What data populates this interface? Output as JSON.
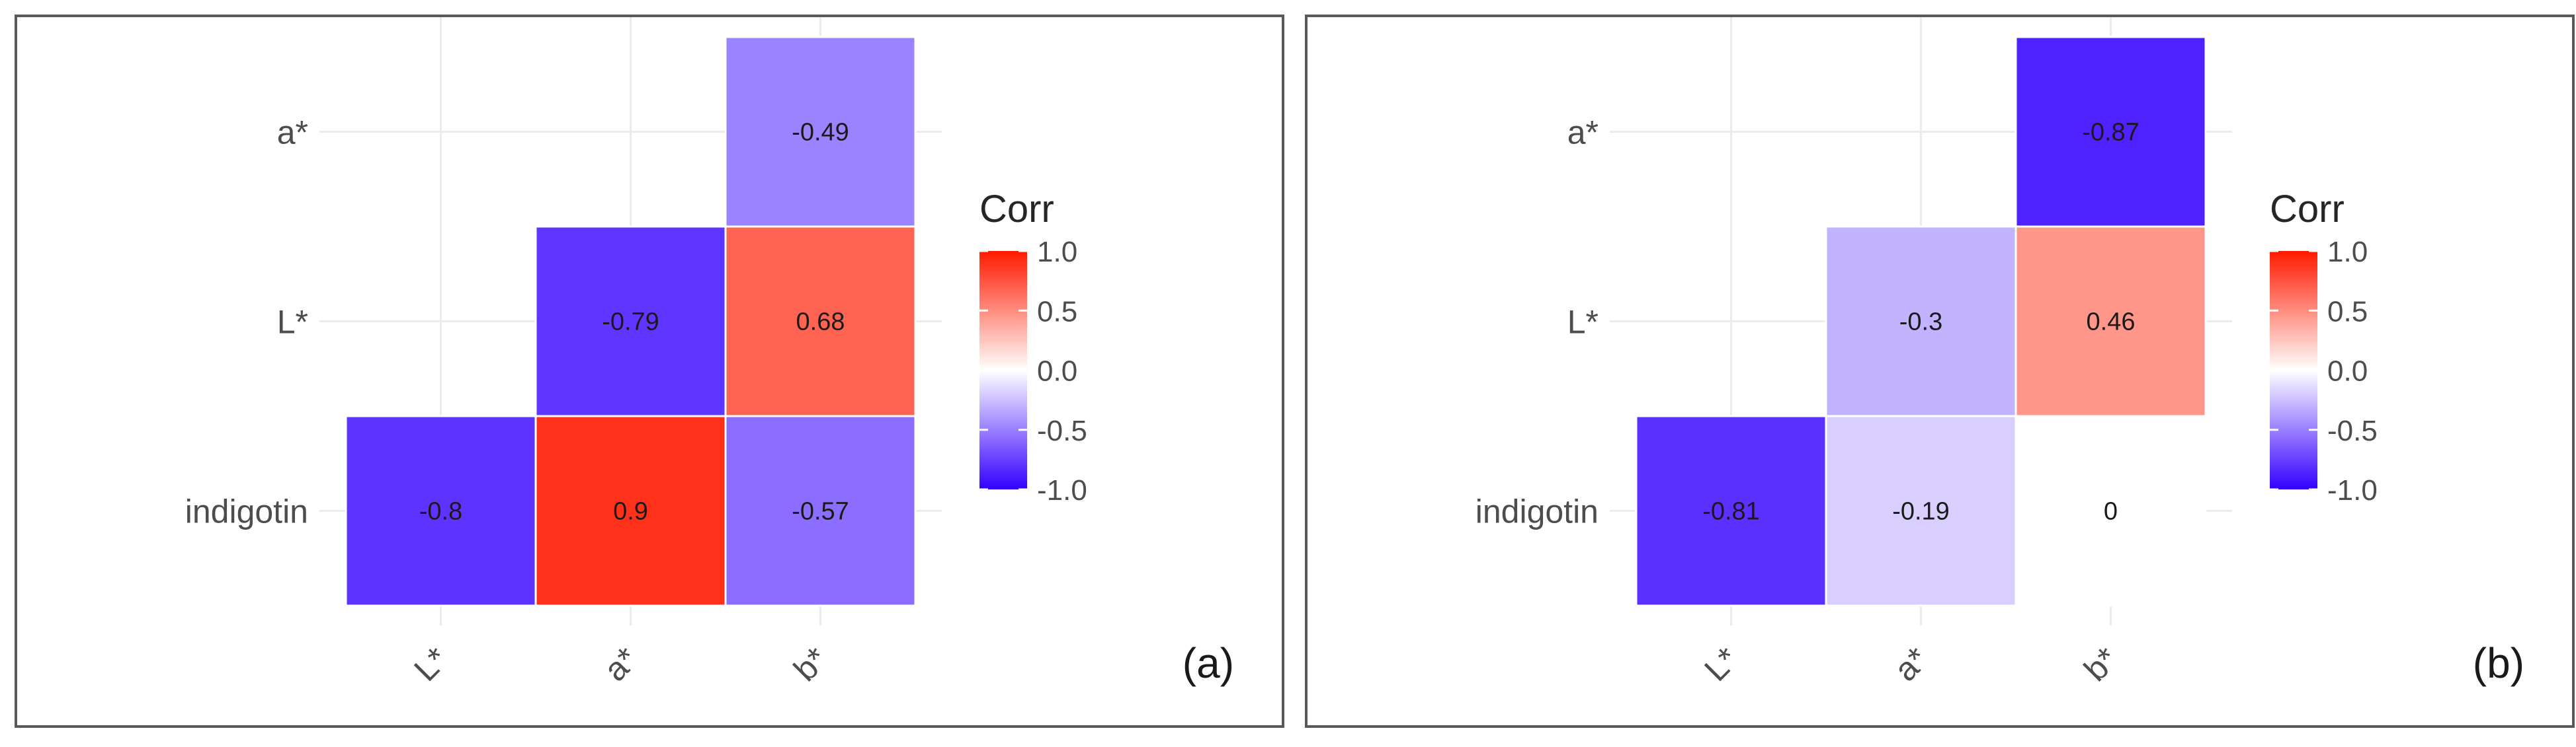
{
  "chart_data": [
    {
      "type": "heatmap",
      "panel_label": "(a)",
      "x_categories": [
        "L*",
        "a*",
        "b*"
      ],
      "y_categories": [
        "indigotin",
        "L*",
        "a*"
      ],
      "cells": [
        {
          "x": "L*",
          "y": "indigotin",
          "value": -0.8,
          "label": "-0.8"
        },
        {
          "x": "a*",
          "y": "indigotin",
          "value": 0.9,
          "label": "0.9"
        },
        {
          "x": "b*",
          "y": "indigotin",
          "value": -0.57,
          "label": "-0.57"
        },
        {
          "x": "a*",
          "y": "L*",
          "value": -0.79,
          "label": "-0.79"
        },
        {
          "x": "b*",
          "y": "L*",
          "value": 0.68,
          "label": "0.68"
        },
        {
          "x": "b*",
          "y": "a*",
          "value": -0.49,
          "label": "-0.49"
        }
      ],
      "legend": {
        "title": "Corr",
        "ticks": [
          "1.0",
          "0.5",
          "0.0",
          "-0.5",
          "-1.0"
        ],
        "range": [
          -1,
          1
        ]
      }
    },
    {
      "type": "heatmap",
      "panel_label": "(b)",
      "x_categories": [
        "L*",
        "a*",
        "b*"
      ],
      "y_categories": [
        "indigotin",
        "L*",
        "a*"
      ],
      "cells": [
        {
          "x": "L*",
          "y": "indigotin",
          "value": -0.81,
          "label": "-0.81"
        },
        {
          "x": "a*",
          "y": "indigotin",
          "value": -0.19,
          "label": "-0.19"
        },
        {
          "x": "b*",
          "y": "indigotin",
          "value": 0,
          "label": "0"
        },
        {
          "x": "a*",
          "y": "L*",
          "value": -0.3,
          "label": "-0.3"
        },
        {
          "x": "b*",
          "y": "L*",
          "value": 0.46,
          "label": "0.46"
        },
        {
          "x": "b*",
          "y": "a*",
          "value": -0.87,
          "label": "-0.87"
        }
      ],
      "legend": {
        "title": "Corr",
        "ticks": [
          "1.0",
          "0.5",
          "0.0",
          "-0.5",
          "-1.0"
        ],
        "range": [
          -1,
          1
        ]
      }
    }
  ],
  "colors": {
    "low": "#3300ff",
    "mid": "#ffffff",
    "high": "#ff1a00",
    "grid": "#ebebeb",
    "text": "#262626",
    "axis_text": "#4d4d4d"
  }
}
